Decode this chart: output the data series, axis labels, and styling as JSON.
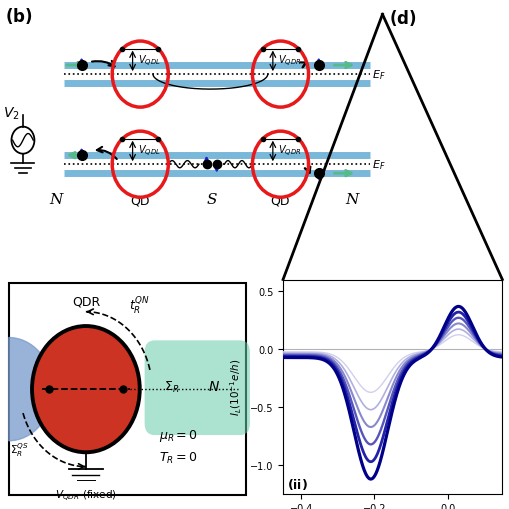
{
  "bg_color": "#ffffff",
  "wire_color": "#7ab8d9",
  "red_circle_color": "#e8191a",
  "blue_spin_color": "#2222cc",
  "green_arrow_color": "#55bb88",
  "teal_color": "#66ccaa",
  "red_qdr_color": "#cc3322",
  "blue_qdl_color": "#7799cc",
  "curve_colors": [
    "#d0d0ee",
    "#b0b0e0",
    "#8888cc",
    "#5555bb",
    "#2222aa",
    "#000088"
  ],
  "ylim": [
    -1.25,
    0.6
  ],
  "xlim": [
    -0.45,
    0.15
  ]
}
